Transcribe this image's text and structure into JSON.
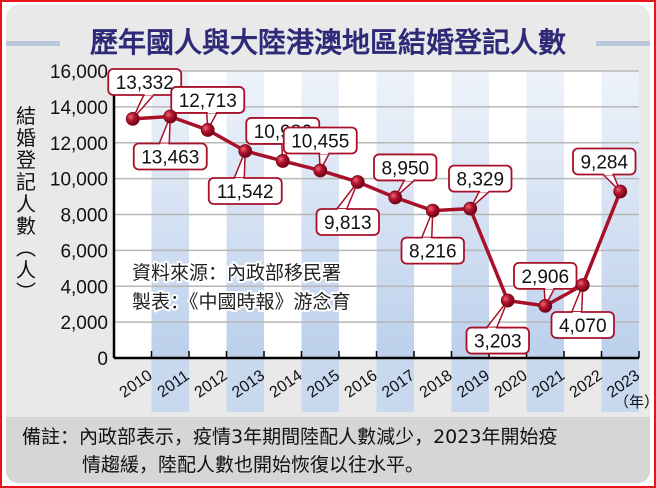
{
  "chart_data": {
    "type": "line",
    "title": "歷年國人與大陸港澳地區結婚登記人數",
    "xlabel": "（年）",
    "ylabel": "結婚登記人數（人）",
    "ylim": [
      0,
      16000
    ],
    "yticks": [
      0,
      2000,
      4000,
      6000,
      8000,
      10000,
      12000,
      14000,
      16000
    ],
    "ytick_labels": [
      "0",
      "2,000",
      "4,000",
      "6,000",
      "8,000",
      "10,000",
      "12,000",
      "14,000",
      "16,000"
    ],
    "categories": [
      "2010",
      "2011",
      "2012",
      "2013",
      "2014",
      "2015",
      "2016",
      "2017",
      "2018",
      "2019",
      "2020",
      "2021",
      "2022",
      "2023"
    ],
    "series": [
      {
        "name": "結婚登記人數",
        "values": [
          13332,
          13463,
          12713,
          11542,
          10986,
          10455,
          9813,
          8950,
          8216,
          8329,
          3203,
          2906,
          4070,
          9284
        ],
        "labels": [
          "13,332",
          "13,463",
          "12,713",
          "11,542",
          "10,986",
          "10,455",
          "9,813",
          "8,950",
          "8,216",
          "8,329",
          "3,203",
          "2,906",
          "4,070",
          "9,284"
        ],
        "label_positions": [
          "above",
          "below",
          "above",
          "below",
          "above",
          "above",
          "below",
          "above",
          "below",
          "above",
          "below",
          "above",
          "below",
          "above"
        ],
        "color": "#a8102a"
      }
    ],
    "grid": true,
    "annotations": [
      "資料來源：內政部移民署",
      "製表：《中國時報》游念育"
    ]
  },
  "header": {
    "title": "歷年國人與大陸港澳地區結婚登記人數"
  },
  "axis": {
    "ylabel_chars": [
      "結",
      "婚",
      "登",
      "記",
      "人",
      "數",
      "︵",
      "人",
      "︶"
    ],
    "xunit": "（年）"
  },
  "source": {
    "line1": "資料來源：內政部移民署",
    "line2": "製表：《中國時報》游念育"
  },
  "footnote": {
    "line1": "備註：內政部表示，疫情3年期間陸配人數減少，2023年開始疫",
    "line2": "情趨緩，陸配人數也開始恢復以往水平。"
  },
  "colors": {
    "title": "#2e2a78",
    "line": "#a8102a",
    "stripe": "#c7d8ef",
    "frame": "#e8141b",
    "panel": "#e9e9ea"
  }
}
